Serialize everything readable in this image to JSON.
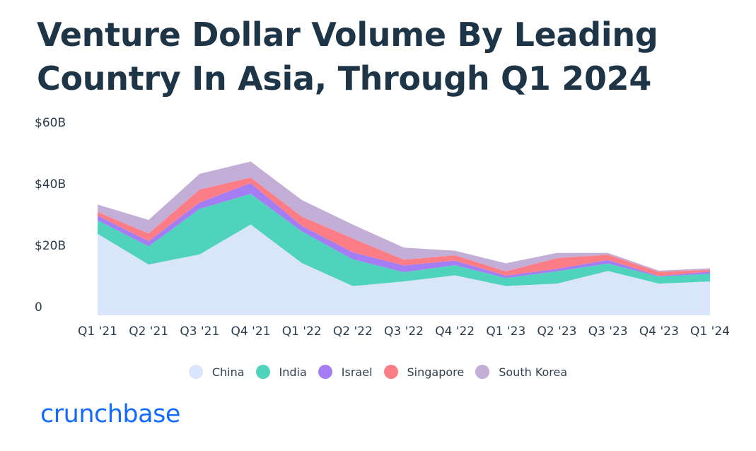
{
  "title_lines": [
    "Venture Dollar Volume By Leading",
    "Country In Asia, Through Q1 2024"
  ],
  "logo_text": "crunchbase",
  "colors": {
    "China": "#d9e5fb",
    "India": "#4fd3bc",
    "Israel": "#a47cf3",
    "Singapore": "#fd7d86",
    "South Korea": "#c2aed6",
    "brand": "#146aff"
  },
  "chart_data": {
    "type": "area",
    "stacked": true,
    "title": "Venture Dollar Volume By Leading Country In Asia, Through Q1 2024",
    "xlabel": "",
    "ylabel": "",
    "ylim": [
      0,
      60
    ],
    "y_ticks": [
      {
        "value": 0,
        "label": "0"
      },
      {
        "value": 20,
        "label": "$20B"
      },
      {
        "value": 40,
        "label": "$40B"
      },
      {
        "value": 60,
        "label": "$60B"
      }
    ],
    "categories": [
      "Q1 '21",
      "Q2 '21",
      "Q3 '21",
      "Q4 '21",
      "Q1 '22",
      "Q2 '22",
      "Q3 '22",
      "Q4 '22",
      "Q1 '23",
      "Q2 '23",
      "Q3 '23",
      "Q4 '23",
      "Q1 '24"
    ],
    "grid": false,
    "legend_position": "bottom-center",
    "series": [
      {
        "name": "China",
        "values": [
          26.5,
          16.5,
          19.8,
          29.5,
          17.0,
          9.5,
          11.0,
          13.0,
          9.5,
          10.3,
          14.4,
          10.3,
          11.0
        ]
      },
      {
        "name": "India",
        "values": [
          4.4,
          5.9,
          14.8,
          10.0,
          10.3,
          8.7,
          3.0,
          3.3,
          2.6,
          4.0,
          2.4,
          2.3,
          2.5
        ]
      },
      {
        "name": "Israel",
        "values": [
          1.5,
          1.7,
          2.1,
          3.5,
          1.8,
          2.3,
          2.2,
          1.5,
          0.8,
          0.8,
          1.2,
          0.2,
          0.7
        ]
      },
      {
        "name": "Singapore",
        "values": [
          1.2,
          2.5,
          4.2,
          1.8,
          3.0,
          4.5,
          1.9,
          1.7,
          1.4,
          3.5,
          1.7,
          1.3,
          0.6
        ]
      },
      {
        "name": "South Korea",
        "values": [
          2.4,
          4.4,
          5.1,
          5.2,
          5.4,
          4.5,
          3.9,
          1.5,
          2.6,
          1.7,
          0.6,
          0.4,
          0.5
        ]
      }
    ]
  }
}
